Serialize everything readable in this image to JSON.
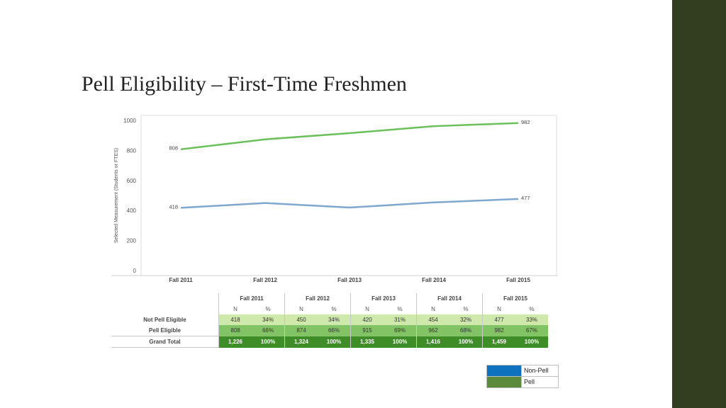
{
  "slide": {
    "title": "Pell Eligibility – First-Time Freshmen",
    "sidebar_color": "#333d1f"
  },
  "chart_data": {
    "type": "line",
    "title": "",
    "ylabel": "Selected Measurement (Students or FTES)",
    "xlabel": "",
    "x": [
      "Fall 2011",
      "Fall 2012",
      "Fall 2013",
      "Fall 2014",
      "Fall 2015"
    ],
    "ylim": [
      0,
      1000
    ],
    "yticks": [
      0,
      200,
      400,
      600,
      800,
      1000
    ],
    "grid": false,
    "series": [
      {
        "name": "Pell",
        "color": "#6cc05c",
        "values": [
          808,
          874,
          915,
          962,
          982
        ]
      },
      {
        "name": "Non-Pell",
        "color": "#7fa7cf",
        "values": [
          418,
          450,
          420,
          454,
          477
        ]
      }
    ],
    "point_labels": [
      {
        "text": "808",
        "series": 0,
        "index": 0,
        "side": "left"
      },
      {
        "text": "982",
        "series": 0,
        "index": 4,
        "side": "right"
      },
      {
        "text": "418",
        "series": 1,
        "index": 0,
        "side": "left"
      },
      {
        "text": "477",
        "series": 1,
        "index": 4,
        "side": "right"
      }
    ]
  },
  "table": {
    "years": [
      "Fall 2011",
      "Fall 2012",
      "Fall 2013",
      "Fall 2014",
      "Fall 2015"
    ],
    "subheaders": {
      "n": "N",
      "pct": "%"
    },
    "rows": [
      {
        "label": "Not Pell Eligible",
        "kind": "notpell",
        "cells": [
          [
            "418",
            "34%"
          ],
          [
            "450",
            "34%"
          ],
          [
            "420",
            "31%"
          ],
          [
            "454",
            "32%"
          ],
          [
            "477",
            "33%"
          ]
        ]
      },
      {
        "label": "Pell Eligible",
        "kind": "pell",
        "cells": [
          [
            "808",
            "66%"
          ],
          [
            "874",
            "66%"
          ],
          [
            "915",
            "69%"
          ],
          [
            "962",
            "68%"
          ],
          [
            "982",
            "67%"
          ]
        ]
      },
      {
        "label": "Grand Total",
        "kind": "total",
        "cells": [
          [
            "1,226",
            "100%"
          ],
          [
            "1,324",
            "100%"
          ],
          [
            "1,335",
            "100%"
          ],
          [
            "1,416",
            "100%"
          ],
          [
            "1,459",
            "100%"
          ]
        ]
      }
    ]
  },
  "legend": {
    "items": [
      {
        "label": "Non-Pell",
        "color": "#0f72bf"
      },
      {
        "label": "Pell",
        "color": "#5a8a3a"
      }
    ]
  }
}
